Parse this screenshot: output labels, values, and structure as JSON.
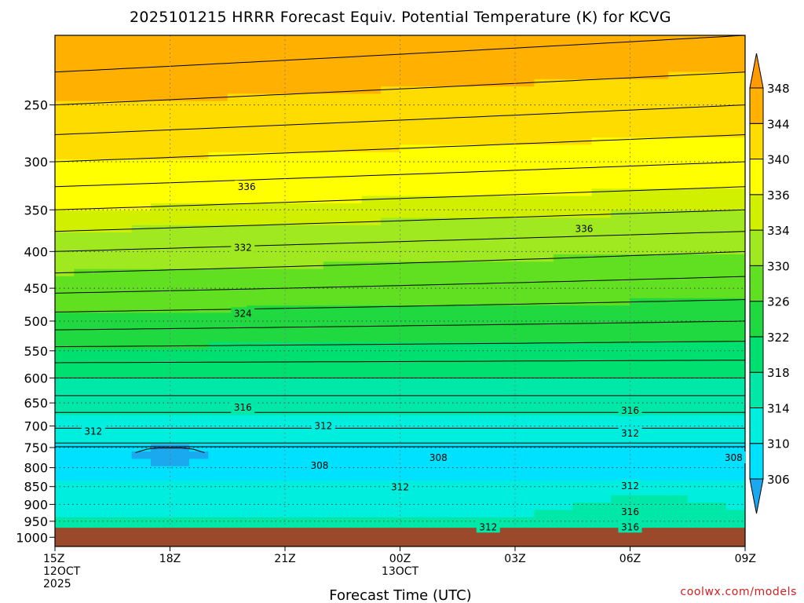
{
  "chart_data": {
    "type": "heatmap",
    "title": "2025101215 HRRR Forecast Equiv. Potential Temperature (K) for KCVG",
    "xlabel": "Forecast Time (UTC)",
    "ylabel": "",
    "y_scale": "log",
    "y_reversed": true,
    "y_range": [
      1030,
      200
    ],
    "x_range": [
      0,
      18
    ],
    "x_ticks": [
      {
        "x": 0,
        "lines": [
          "15Z",
          "12OCT",
          "2025"
        ]
      },
      {
        "x": 3,
        "lines": [
          "18Z"
        ]
      },
      {
        "x": 6,
        "lines": [
          "21Z"
        ]
      },
      {
        "x": 9,
        "lines": [
          "00Z",
          "13OCT"
        ]
      },
      {
        "x": 12,
        "lines": [
          "03Z"
        ]
      },
      {
        "x": 15,
        "lines": [
          "06Z"
        ]
      },
      {
        "x": 18,
        "lines": [
          "09Z"
        ]
      }
    ],
    "y_ticks": [
      250,
      300,
      350,
      400,
      450,
      500,
      550,
      600,
      650,
      700,
      750,
      800,
      850,
      900,
      950,
      1000
    ],
    "grid": true,
    "surface_pressure": 970,
    "surface_color": "#9a4a2a",
    "colorbar": {
      "levels": [
        306,
        310,
        314,
        318,
        322,
        326,
        330,
        334,
        336,
        340,
        344,
        348
      ],
      "colors": [
        "#1aa8ee",
        "#00e0ff",
        "#00eedd",
        "#00e8a8",
        "#00e070",
        "#20d840",
        "#60e020",
        "#a0e820",
        "#d0f000",
        "#ffff00",
        "#ffdc00",
        "#ffb000",
        "#ff9a00"
      ],
      "extend": "both"
    },
    "contour_labels": [
      {
        "x": 5.0,
        "p": 325,
        "text": "336"
      },
      {
        "x": 4.9,
        "p": 395,
        "text": "332"
      },
      {
        "x": 4.9,
        "p": 488,
        "text": "324"
      },
      {
        "x": 4.9,
        "p": 660,
        "text": "316"
      },
      {
        "x": 1.0,
        "p": 712,
        "text": "312"
      },
      {
        "x": 7.0,
        "p": 700,
        "text": "312"
      },
      {
        "x": 6.9,
        "p": 795,
        "text": "308"
      },
      {
        "x": 10.0,
        "p": 775,
        "text": "308"
      },
      {
        "x": 9.0,
        "p": 852,
        "text": "312"
      },
      {
        "x": 13.8,
        "p": 372,
        "text": "336"
      },
      {
        "x": 15.0,
        "p": 666,
        "text": "316"
      },
      {
        "x": 15.0,
        "p": 717,
        "text": "312"
      },
      {
        "x": 17.7,
        "p": 775,
        "text": "308"
      },
      {
        "x": 15.0,
        "p": 848,
        "text": "312"
      },
      {
        "x": 15.0,
        "p": 922,
        "text": "316"
      },
      {
        "x": 11.3,
        "p": 968,
        "text": "312"
      },
      {
        "x": 15.0,
        "p": 968,
        "text": "316"
      }
    ],
    "credit": "coolwx.com/models"
  }
}
